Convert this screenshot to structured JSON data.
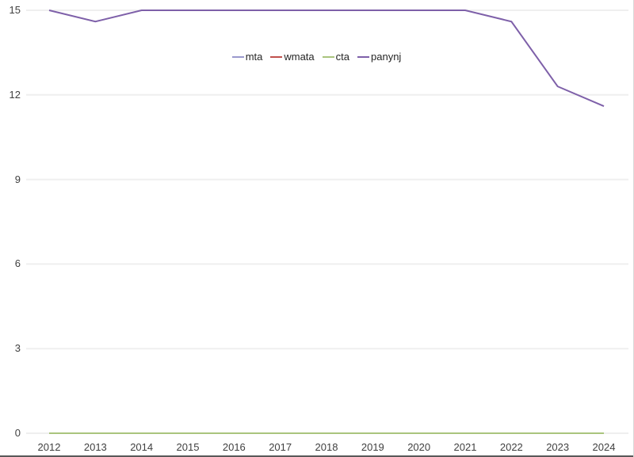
{
  "chart_data": {
    "type": "line",
    "title": "",
    "xlabel": "",
    "ylabel": "",
    "x": [
      "2012",
      "2013",
      "2014",
      "2015",
      "2016",
      "2017",
      "2018",
      "2019",
      "2020",
      "2021",
      "2022",
      "2023",
      "2024"
    ],
    "yticks": [
      "0",
      "3",
      "6",
      "9",
      "12",
      "15"
    ],
    "ylim": [
      0,
      15
    ],
    "grid": "horizontal",
    "gridline_color": "#efefef",
    "legend_position": "top-center",
    "series": [
      {
        "name": "mta",
        "color": "#9a99cd",
        "visible_line": false,
        "values": []
      },
      {
        "name": "wmata",
        "color": "#c0504d",
        "visible_line": false,
        "values": []
      },
      {
        "name": "cta",
        "color": "#a9c47d",
        "visible_line": true,
        "values": [
          0,
          0,
          0,
          0,
          0,
          0,
          0,
          0,
          0,
          0,
          0,
          0,
          0
        ]
      },
      {
        "name": "panynj",
        "color": "#7e60a9",
        "visible_line": true,
        "values": [
          15,
          14.6,
          15,
          15,
          15,
          15,
          15,
          15,
          15,
          15,
          14.6,
          12.3,
          11.6
        ]
      }
    ]
  }
}
